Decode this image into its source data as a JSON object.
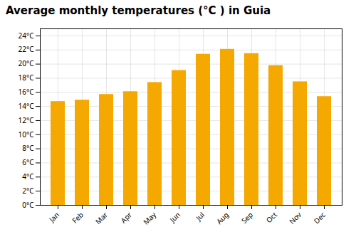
{
  "chart_data": {
    "type": "bar",
    "title": "Average monthly temperatures (°C ) in Guia",
    "categories": [
      "Jan",
      "Feb",
      "Mar",
      "Apr",
      "May",
      "Jun",
      "Jul",
      "Aug",
      "Sep",
      "Oct",
      "Nov",
      "Dec"
    ],
    "values": [
      14.7,
      14.9,
      15.7,
      16.1,
      17.4,
      19.1,
      21.4,
      22.1,
      21.5,
      19.8,
      17.5,
      15.4
    ],
    "color": "#F5A800",
    "ylim": [
      0,
      25
    ],
    "yticks": [
      {
        "value": 0,
        "label": "0°C"
      },
      {
        "value": 2,
        "label": "2°C"
      },
      {
        "value": 4,
        "label": "4°C"
      },
      {
        "value": 6,
        "label": "6°C"
      },
      {
        "value": 8,
        "label": "8°C"
      },
      {
        "value": 10,
        "label": "10°C"
      },
      {
        "value": 12,
        "label": "12°C"
      },
      {
        "value": 14,
        "label": "14°C"
      },
      {
        "value": 16,
        "label": "16°C"
      },
      {
        "value": 18,
        "label": "18°C"
      },
      {
        "value": 20,
        "label": "20°C"
      },
      {
        "value": 22,
        "label": "22°C"
      },
      {
        "value": 24,
        "label": "24°C"
      }
    ],
    "grid": true
  }
}
